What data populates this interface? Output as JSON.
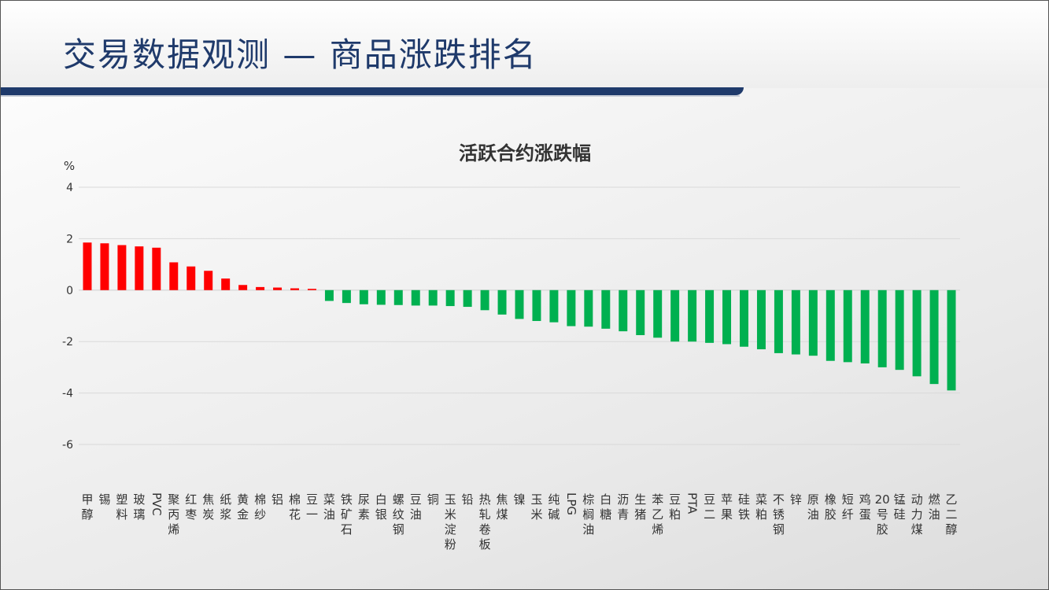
{
  "slide": {
    "title": "交易数据观测 — 商品涨跌排名"
  },
  "colors": {
    "up": "#ff0000",
    "down": "#00b050",
    "title_bar": "#1f3a6b",
    "grid": "#d9d9d9"
  },
  "chart_data": {
    "type": "bar",
    "title": "活跃合约涨跌幅",
    "ylabel": "%",
    "ylim": [
      -6,
      4
    ],
    "yticks": [
      4,
      2,
      0,
      -2,
      -4,
      -6
    ],
    "grid": true,
    "categories": [
      "甲醇",
      "锡",
      "塑料",
      "玻璃",
      "PVC",
      "聚丙烯",
      "红枣",
      "焦炭",
      "纸浆",
      "黄金",
      "棉纱",
      "铝",
      "棉花",
      "豆一",
      "菜油",
      "铁矿石",
      "尿素",
      "白银",
      "螺纹钢",
      "豆油",
      "铜",
      "玉米淀粉",
      "铅",
      "热轧卷板",
      "焦煤",
      "镍",
      "玉米",
      "纯碱",
      "LPG",
      "棕榈油",
      "白糖",
      "沥青",
      "生猪",
      "苯乙烯",
      "豆粕",
      "PTA",
      "豆二",
      "苹果",
      "硅铁",
      "菜粕",
      "不锈钢",
      "锌",
      "原油",
      "橡胶",
      "短纤",
      "鸡蛋",
      "20号胶",
      "锰硅",
      "动力煤",
      "燃油",
      "乙二醇"
    ],
    "values": [
      1.85,
      1.82,
      1.75,
      1.7,
      1.65,
      1.08,
      0.92,
      0.75,
      0.45,
      0.2,
      0.12,
      0.1,
      0.07,
      0.05,
      -0.42,
      -0.5,
      -0.55,
      -0.57,
      -0.58,
      -0.6,
      -0.6,
      -0.62,
      -0.65,
      -0.78,
      -0.95,
      -1.12,
      -1.2,
      -1.25,
      -1.4,
      -1.42,
      -1.5,
      -1.6,
      -1.75,
      -1.85,
      -2.0,
      -2.0,
      -2.05,
      -2.1,
      -2.2,
      -2.3,
      -2.45,
      -2.5,
      -2.55,
      -2.75,
      -2.8,
      -2.85,
      -3.0,
      -3.1,
      -3.35,
      -3.65,
      -3.9
    ]
  }
}
